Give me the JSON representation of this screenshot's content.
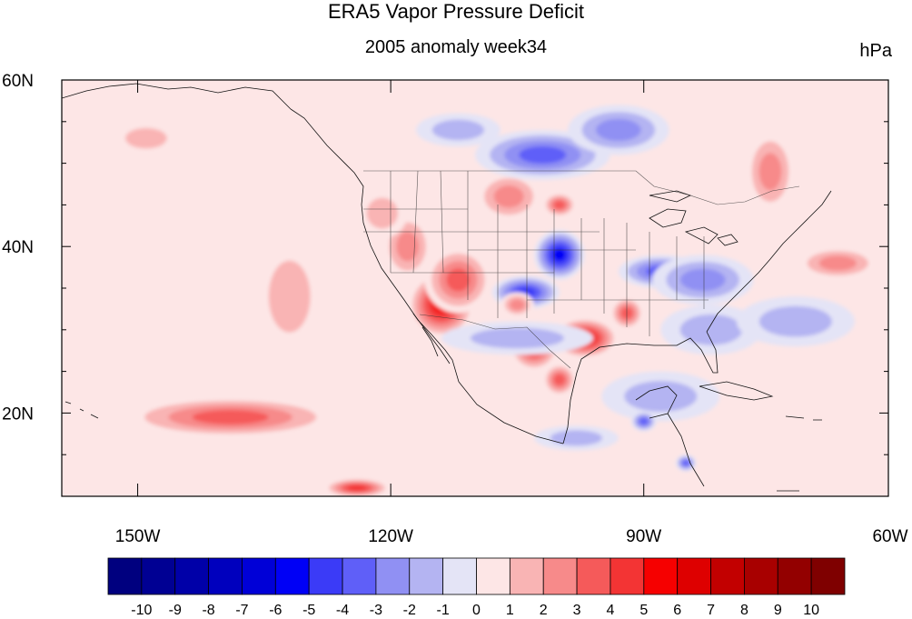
{
  "header": {
    "title": "ERA5 Vapor Pressure Deficit",
    "subtitle": "2005 anomaly week34",
    "units": "hPa"
  },
  "axes": {
    "lat_labels": [
      {
        "value": 60,
        "label": "60N"
      },
      {
        "value": 40,
        "label": "40N"
      },
      {
        "value": 20,
        "label": "20N"
      }
    ],
    "lon_labels": [
      {
        "value": -150,
        "label": "150W"
      },
      {
        "value": -120,
        "label": "120W"
      },
      {
        "value": -90,
        "label": "90W"
      },
      {
        "value": -60,
        "label": "60W"
      }
    ],
    "lon_range": [
      -159,
      -61
    ],
    "lat_range": [
      10,
      60
    ]
  },
  "colorbar": {
    "labels": [
      "-10",
      "-9",
      "-8",
      "-7",
      "-6",
      "-5",
      "-4",
      "-3",
      "-2",
      "-1",
      "0",
      "1",
      "2",
      "3",
      "4",
      "5",
      "6",
      "7",
      "8",
      "9",
      "10"
    ],
    "colors": [
      "#00007f",
      "#000093",
      "#0000a8",
      "#0000be",
      "#0000d7",
      "#0000f6",
      "#3b3bf7",
      "#5f5ff8",
      "#9090f3",
      "#b4b4f2",
      "#e4e4f6",
      "#fde6e6",
      "#f9b4b4",
      "#f78a8a",
      "#f55a5a",
      "#f33434",
      "#f60000",
      "#de0000",
      "#c20000",
      "#a80000",
      "#930000",
      "#7f0000"
    ]
  },
  "chart_data": {
    "type": "heatmap",
    "title": "ERA5 Vapor Pressure Deficit",
    "subtitle": "2005 anomaly week34",
    "units": "hPa",
    "xlabel": "",
    "ylabel": "",
    "xlim": [
      -159,
      -61
    ],
    "ylim": [
      10,
      60
    ],
    "levels": [
      -10,
      -9,
      -8,
      -7,
      -6,
      -5,
      -4,
      -3,
      -2,
      -1,
      0,
      1,
      2,
      3,
      4,
      5,
      6,
      7,
      8,
      9,
      10
    ],
    "background_value": 0.5,
    "features": [
      {
        "lon": -114,
        "lat": 33,
        "value": 6,
        "rx": 4,
        "ry": 4
      },
      {
        "lon": -112,
        "lat": 36,
        "value": 4,
        "rx": 4,
        "ry": 4
      },
      {
        "lon": -118,
        "lat": 40,
        "value": 3,
        "rx": 3,
        "ry": 4
      },
      {
        "lon": -121,
        "lat": 44,
        "value": 2,
        "rx": 3,
        "ry": 3
      },
      {
        "lon": -106,
        "lat": 46,
        "value": 3,
        "rx": 4,
        "ry": 3
      },
      {
        "lon": -100,
        "lat": 45,
        "value": 4,
        "rx": 2,
        "ry": 1.5
      },
      {
        "lon": -100,
        "lat": 39,
        "value": -6,
        "rx": 3,
        "ry": 3
      },
      {
        "lon": -104,
        "lat": 34.5,
        "value": -5,
        "rx": 4,
        "ry": 2
      },
      {
        "lon": -88,
        "lat": 37,
        "value": -4,
        "rx": 5,
        "ry": 2
      },
      {
        "lon": -83,
        "lat": 36,
        "value": -3,
        "rx": 6,
        "ry": 3
      },
      {
        "lon": -97,
        "lat": 29,
        "value": 6,
        "rx": 4,
        "ry": 2.5
      },
      {
        "lon": -103,
        "lat": 28,
        "value": 5,
        "rx": 3,
        "ry": 3
      },
      {
        "lon": -100,
        "lat": 24,
        "value": 4,
        "rx": 2,
        "ry": 2
      },
      {
        "lon": -92,
        "lat": 32,
        "value": 4,
        "rx": 2,
        "ry": 2
      },
      {
        "lon": -102,
        "lat": 51,
        "value": -4,
        "rx": 8,
        "ry": 3
      },
      {
        "lon": -93,
        "lat": 54,
        "value": -3,
        "rx": 6,
        "ry": 3
      },
      {
        "lon": -112,
        "lat": 54,
        "value": -2,
        "rx": 5,
        "ry": 2
      },
      {
        "lon": -75,
        "lat": 49,
        "value": 3,
        "rx": 3,
        "ry": 5
      },
      {
        "lon": -67,
        "lat": 38,
        "value": 3,
        "rx": 5,
        "ry": 2
      },
      {
        "lon": -149,
        "lat": 53,
        "value": 2,
        "rx": 4,
        "ry": 2
      },
      {
        "lon": -132,
        "lat": 34,
        "value": 2,
        "rx": 4,
        "ry": 7
      },
      {
        "lon": -139,
        "lat": 19.5,
        "value": 4,
        "rx": 13,
        "ry": 2.5
      },
      {
        "lon": -124,
        "lat": 11,
        "value": 5,
        "rx": 4,
        "ry": 1.2
      },
      {
        "lon": -82,
        "lat": 30,
        "value": -2,
        "rx": 6,
        "ry": 3
      },
      {
        "lon": -72,
        "lat": 31,
        "value": -2,
        "rx": 7,
        "ry": 3
      },
      {
        "lon": -105,
        "lat": 29,
        "value": -2,
        "rx": 9,
        "ry": 2
      },
      {
        "lon": -88,
        "lat": 22,
        "value": -2,
        "rx": 7,
        "ry": 3
      },
      {
        "lon": -90,
        "lat": 19,
        "value": -4,
        "rx": 1.5,
        "ry": 1.2
      },
      {
        "lon": -85,
        "lat": 14,
        "value": -4,
        "rx": 1.2,
        "ry": 1
      },
      {
        "lon": -98,
        "lat": 17,
        "value": -2,
        "rx": 5,
        "ry": 1.5
      },
      {
        "lon": -105,
        "lat": 33,
        "value": 3,
        "rx": 2,
        "ry": 1.5
      }
    ]
  }
}
